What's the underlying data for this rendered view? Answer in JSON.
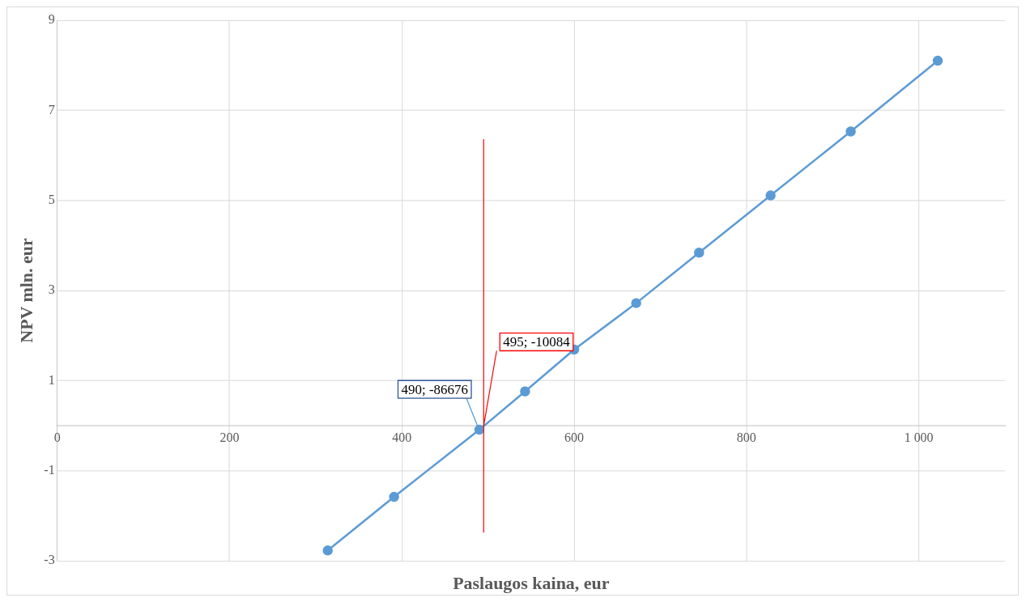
{
  "chart_data": {
    "type": "line",
    "xlabel": "Paslaugos kaina, eur",
    "ylabel": "NPV mln. eur",
    "x": [
      314,
      391,
      490,
      543,
      600,
      672,
      745,
      828,
      921,
      1022
    ],
    "series": [
      {
        "color": "#5b9bd5",
        "values": [
          -2.77,
          -1.58,
          -0.09,
          0.76,
          1.69,
          2.72,
          3.84,
          5.11,
          6.53,
          8.1
        ]
      }
    ],
    "xlim": [
      0,
      1100
    ],
    "xticks": [
      0,
      200,
      400,
      600,
      800,
      {
        "value": 1000,
        "label": "1 000"
      }
    ],
    "ylim": [
      -3,
      9
    ],
    "yticks": [
      -3,
      -1,
      1,
      3,
      5,
      7,
      9
    ],
    "ref_lines": [
      {
        "axis": "x",
        "value": 495,
        "label": "495; -10084",
        "color": "#ff0000"
      }
    ],
    "annotations": [
      {
        "text": "490; -86676",
        "x": 490,
        "y": -0.09
      }
    ],
    "grid": true,
    "marker": "circle",
    "line_style": "solid",
    "legend": false
  }
}
